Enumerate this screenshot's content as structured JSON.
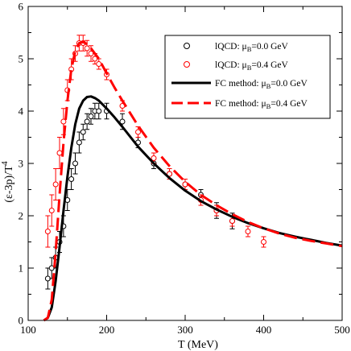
{
  "chart_data": {
    "type": "scatter",
    "xlabel": "T (MeV)",
    "ylabel_parts": {
      "open": "(ε-3p)/T",
      "sup": "4"
    },
    "xlim": [
      100,
      500
    ],
    "ylim": [
      0,
      6
    ],
    "xticks": [
      100,
      200,
      300,
      400,
      500
    ],
    "yticks": [
      0,
      1,
      2,
      3,
      4,
      5,
      6
    ],
    "grid": false,
    "legend_position": "top-right",
    "series": [
      {
        "name_parts": {
          "pre": "lQCD: μ",
          "sub": "B",
          "post": "=0.0 GeV"
        },
        "kind": "points",
        "color": "#000000",
        "x": [
          125,
          130,
          135,
          140,
          145,
          150,
          155,
          160,
          165,
          170,
          175,
          180,
          185,
          190,
          200,
          220,
          240,
          260,
          280,
          300,
          320,
          340,
          360
        ],
        "y": [
          0.8,
          1.0,
          1.2,
          1.5,
          1.8,
          2.3,
          2.7,
          3.0,
          3.4,
          3.6,
          3.8,
          3.9,
          4.0,
          4.0,
          4.0,
          3.8,
          3.4,
          3.0,
          2.8,
          2.6,
          2.4,
          2.1,
          1.9
        ],
        "err": [
          0.2,
          0.2,
          0.2,
          0.2,
          0.2,
          0.2,
          0.2,
          0.2,
          0.2,
          0.15,
          0.15,
          0.15,
          0.15,
          0.15,
          0.15,
          0.15,
          0.1,
          0.1,
          0.1,
          0.1,
          0.1,
          0.15,
          0.15
        ]
      },
      {
        "name_parts": {
          "pre": "lQCD: μ",
          "sub": "B",
          "post": "=0.4 GeV"
        },
        "kind": "points",
        "color": "#ff0000",
        "x": [
          125,
          130,
          135,
          140,
          145,
          150,
          155,
          160,
          165,
          170,
          175,
          180,
          185,
          190,
          200,
          220,
          240,
          260,
          280,
          300,
          320,
          340,
          360,
          380,
          400
        ],
        "y": [
          1.7,
          2.1,
          2.6,
          3.2,
          3.8,
          4.4,
          4.8,
          5.1,
          5.3,
          5.3,
          5.2,
          5.1,
          5.0,
          4.9,
          4.7,
          4.1,
          3.6,
          3.1,
          2.8,
          2.6,
          2.3,
          2.1,
          1.9,
          1.7,
          1.5
        ],
        "err": [
          0.3,
          0.3,
          0.3,
          0.3,
          0.25,
          0.2,
          0.2,
          0.15,
          0.15,
          0.15,
          0.15,
          0.15,
          0.1,
          0.1,
          0.1,
          0.1,
          0.1,
          0.1,
          0.1,
          0.1,
          0.1,
          0.1,
          0.1,
          0.1,
          0.1
        ]
      },
      {
        "name_parts": {
          "pre": "FC method: μ",
          "sub": "B",
          "post": "=0.0 GeV"
        },
        "kind": "line",
        "dashed": false,
        "color": "#000000",
        "x": [
          120,
          125,
          130,
          135,
          140,
          145,
          150,
          155,
          160,
          165,
          170,
          175,
          180,
          185,
          190,
          200,
          210,
          220,
          240,
          260,
          280,
          300,
          320,
          340,
          360,
          380,
          400,
          420,
          440,
          460,
          480,
          500
        ],
        "y": [
          0.0,
          0.05,
          0.25,
          0.75,
          1.4,
          2.1,
          2.75,
          3.3,
          3.75,
          4.05,
          4.2,
          4.27,
          4.28,
          4.25,
          4.2,
          4.05,
          3.88,
          3.7,
          3.32,
          3.0,
          2.72,
          2.48,
          2.28,
          2.12,
          1.98,
          1.86,
          1.76,
          1.67,
          1.6,
          1.54,
          1.48,
          1.43
        ]
      },
      {
        "name_parts": {
          "pre": "FC method: μ",
          "sub": "B",
          "post": "=0.4 GeV"
        },
        "kind": "line",
        "dashed": true,
        "color": "#ff0000",
        "x": [
          120,
          125,
          130,
          135,
          140,
          145,
          150,
          155,
          160,
          165,
          170,
          175,
          180,
          185,
          190,
          200,
          210,
          220,
          240,
          260,
          280,
          300,
          320,
          340,
          360,
          380,
          400,
          420,
          440,
          460,
          480,
          500
        ],
        "y": [
          0.0,
          0.05,
          0.4,
          1.3,
          2.4,
          3.4,
          4.2,
          4.8,
          5.15,
          5.3,
          5.32,
          5.28,
          5.2,
          5.1,
          5.0,
          4.72,
          4.45,
          4.2,
          3.72,
          3.3,
          2.95,
          2.65,
          2.4,
          2.2,
          2.03,
          1.88,
          1.76,
          1.66,
          1.58,
          1.52,
          1.47,
          1.42
        ]
      }
    ]
  }
}
